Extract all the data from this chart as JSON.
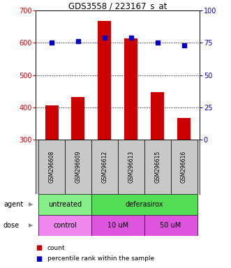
{
  "title": "GDS3558 / 223167_s_at",
  "samples": [
    "GSM296608",
    "GSM296609",
    "GSM296612",
    "GSM296613",
    "GSM296615",
    "GSM296616"
  ],
  "counts": [
    405,
    432,
    668,
    614,
    448,
    368
  ],
  "percentiles": [
    75,
    76,
    79,
    79,
    75,
    73
  ],
  "ylim_left": [
    300,
    700
  ],
  "ylim_right": [
    0,
    100
  ],
  "yticks_left": [
    300,
    400,
    500,
    600,
    700
  ],
  "yticks_right": [
    0,
    25,
    50,
    75,
    100
  ],
  "bar_color": "#cc0000",
  "dot_color": "#0000cc",
  "agent_groups": [
    {
      "label": "untreated",
      "start": 0,
      "end": 2,
      "color": "#88ee88"
    },
    {
      "label": "deferasirox",
      "start": 2,
      "end": 6,
      "color": "#55dd55"
    }
  ],
  "dose_groups": [
    {
      "label": "control",
      "start": 0,
      "end": 2,
      "color": "#ee88ee"
    },
    {
      "label": "10 uM",
      "start": 2,
      "end": 4,
      "color": "#dd55dd"
    },
    {
      "label": "50 uM",
      "start": 4,
      "end": 6,
      "color": "#dd55dd"
    }
  ],
  "bg_color": "white",
  "sample_bg": "#c8c8c8",
  "legend_count_color": "#cc0000",
  "legend_pct_color": "#0000cc"
}
